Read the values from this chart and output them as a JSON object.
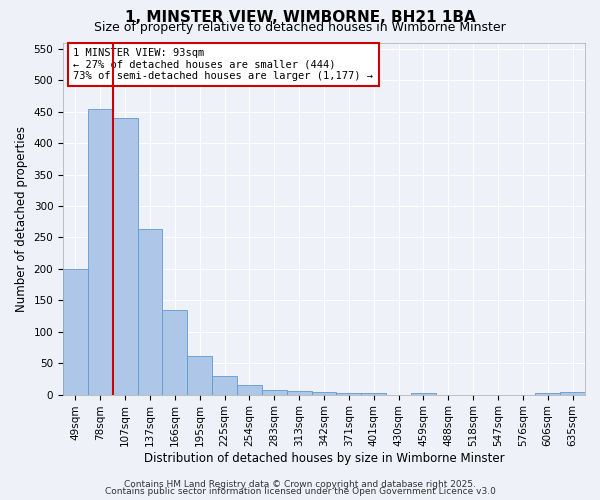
{
  "title": "1, MINSTER VIEW, WIMBORNE, BH21 1BA",
  "subtitle": "Size of property relative to detached houses in Wimborne Minster",
  "xlabel": "Distribution of detached houses by size in Wimborne Minster",
  "ylabel": "Number of detached properties",
  "categories": [
    "49sqm",
    "78sqm",
    "107sqm",
    "137sqm",
    "166sqm",
    "195sqm",
    "225sqm",
    "254sqm",
    "283sqm",
    "313sqm",
    "342sqm",
    "371sqm",
    "401sqm",
    "430sqm",
    "459sqm",
    "488sqm",
    "518sqm",
    "547sqm",
    "576sqm",
    "606sqm",
    "635sqm"
  ],
  "values": [
    200,
    455,
    440,
    263,
    135,
    62,
    30,
    15,
    8,
    5,
    4,
    3,
    2,
    0,
    3,
    0,
    0,
    0,
    0,
    3,
    4
  ],
  "bar_color": "#aec6e8",
  "bar_edge_color": "#5b9bd5",
  "vline_x": 1.5,
  "vline_color": "#cc0000",
  "annotation_text": "1 MINSTER VIEW: 93sqm\n← 27% of detached houses are smaller (444)\n73% of semi-detached houses are larger (1,177) →",
  "annotation_box_color": "#ffffff",
  "annotation_box_edge": "#cc0000",
  "ylim": [
    0,
    560
  ],
  "yticks": [
    0,
    50,
    100,
    150,
    200,
    250,
    300,
    350,
    400,
    450,
    500,
    550
  ],
  "footer1": "Contains HM Land Registry data © Crown copyright and database right 2025.",
  "footer2": "Contains public sector information licensed under the Open Government Licence v3.0",
  "background_color": "#eef2f8",
  "title_fontsize": 11,
  "subtitle_fontsize": 9,
  "axis_label_fontsize": 8.5,
  "tick_fontsize": 7.5,
  "footer_fontsize": 6.5
}
